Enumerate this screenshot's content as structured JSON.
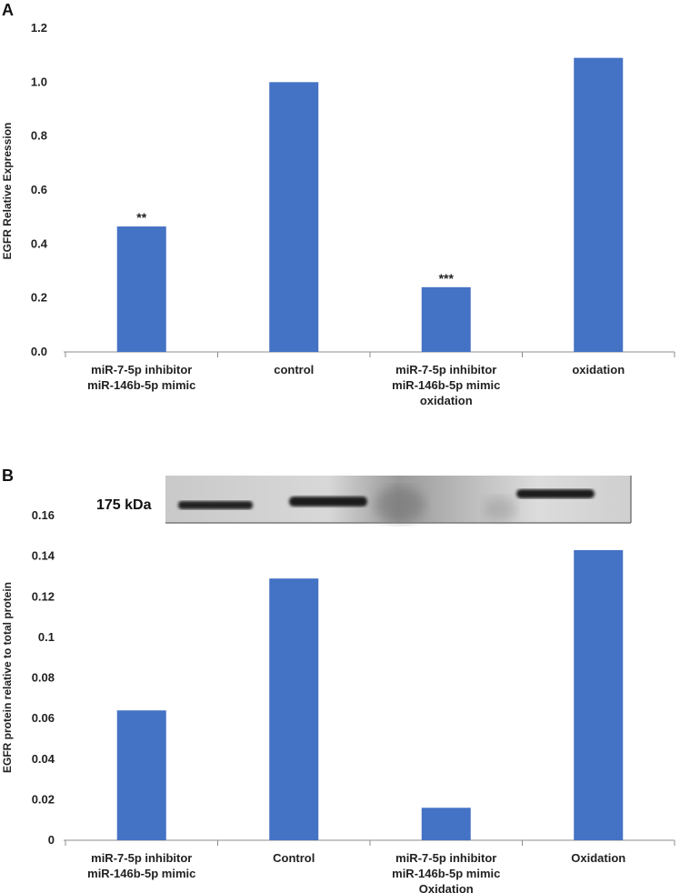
{
  "colors": {
    "bar": "#4472C4",
    "axis": "#8c8c8c",
    "text": "#222222"
  },
  "panel_a": {
    "label": "A",
    "ylabel": "EGFR Relative Expression",
    "yticks": [
      "0.0",
      "0.2",
      "0.4",
      "0.6",
      "0.8",
      "1.0",
      "1.2"
    ]
  },
  "panel_b": {
    "label": "B",
    "ylabel": "EGFR protein relative to total protein",
    "yticks": [
      "0",
      "0.02",
      "0.04",
      "0.06",
      "0.08",
      "0.1",
      "0.12",
      "0.14",
      "0.16"
    ],
    "blot_label": "175 kDa"
  },
  "chart_data": [
    {
      "type": "bar",
      "title": "",
      "ylabel": "EGFR Relative Expression",
      "xlabel": "",
      "ylim": [
        0,
        1.2
      ],
      "categories": [
        [
          "miR-7-5p inhibitor",
          "miR-146b-5p mimic"
        ],
        [
          "control"
        ],
        [
          "miR-7-5p inhibitor",
          "miR-146b-5p mimic",
          "oxidation"
        ],
        [
          "oxidation"
        ]
      ],
      "values": [
        0.465,
        1.0,
        0.24,
        1.09
      ],
      "annotations": [
        "**",
        "",
        "***",
        ""
      ]
    },
    {
      "type": "bar",
      "title": "",
      "ylabel": "EGFR protein relative to total protein",
      "xlabel": "",
      "ylim": [
        0,
        0.16
      ],
      "categories": [
        [
          "miR-7-5p inhibitor",
          "miR-146b-5p mimic"
        ],
        [
          "Control"
        ],
        [
          "miR-7-5p inhibitor",
          "miR-146b-5p mimic",
          "Oxidation"
        ],
        [
          "Oxidation"
        ]
      ],
      "values": [
        0.064,
        0.129,
        0.016,
        0.143
      ],
      "annotations": [
        "",
        "",
        "",
        ""
      ]
    }
  ]
}
